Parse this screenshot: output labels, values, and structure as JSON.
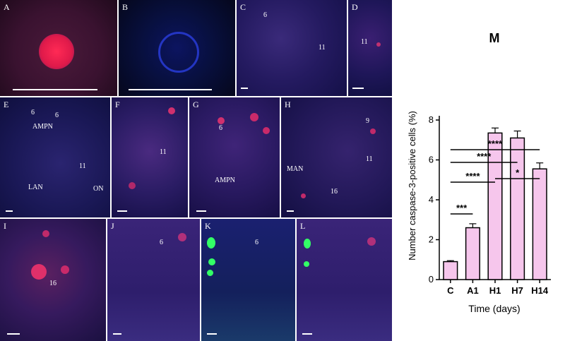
{
  "panels": {
    "A": {
      "label": "A",
      "annotations": []
    },
    "B": {
      "label": "B",
      "annotations": []
    },
    "C": {
      "label": "C",
      "annotations": [
        "6",
        "11"
      ]
    },
    "D": {
      "label": "D",
      "annotations": [
        "11"
      ]
    },
    "E": {
      "label": "E",
      "annotations": [
        "6",
        "6",
        "AMPN",
        "11",
        "LAN",
        "ON"
      ]
    },
    "F": {
      "label": "F",
      "annotations": [
        "11"
      ]
    },
    "G": {
      "label": "G",
      "annotations": [
        "6",
        "AMPN"
      ]
    },
    "H": {
      "label": "H",
      "annotations": [
        "9",
        "11",
        "MAN",
        "16"
      ]
    },
    "I": {
      "label": "I",
      "annotations": [
        "16"
      ]
    },
    "J": {
      "label": "J",
      "annotations": [
        "6"
      ]
    },
    "K": {
      "label": "K",
      "annotations": [
        "6"
      ]
    },
    "L": {
      "label": "L",
      "annotations": []
    }
  },
  "colors": {
    "bar_fill": "#f6c6ec",
    "bar_stroke": "#000000",
    "nuclei_blue": "#2233dd",
    "signal_red": "#ff2a55",
    "signal_green": "#33ff66"
  },
  "chart_data": {
    "type": "bar",
    "title": "M",
    "categories": [
      "C",
      "A1",
      "H1",
      "H7",
      "H14"
    ],
    "values": [
      0.9,
      2.6,
      7.35,
      7.1,
      5.55
    ],
    "errors": [
      0.05,
      0.2,
      0.25,
      0.35,
      0.3
    ],
    "xlabel": "Time (days)",
    "ylabel": "Number caspase-3-positive cells (%)",
    "ylim": [
      0,
      8
    ],
    "yticks": [
      0,
      2,
      4,
      6,
      8
    ],
    "grid": false,
    "significance": [
      {
        "from": "C",
        "to": "A1",
        "label": "***"
      },
      {
        "from": "C",
        "to": "H1",
        "label": "****"
      },
      {
        "from": "H1",
        "to": "H14",
        "label": "*"
      },
      {
        "from": "C",
        "to": "H7",
        "label": "****"
      },
      {
        "from": "C",
        "to": "H14",
        "label": "****"
      }
    ]
  }
}
